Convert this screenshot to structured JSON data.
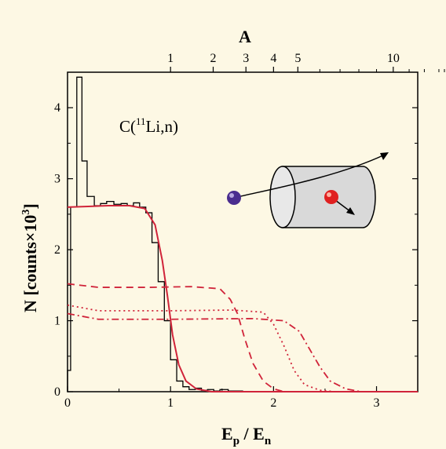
{
  "chart_data": {
    "type": "line",
    "annotation_label": "C(",
    "annotation_sup": "11",
    "annotation_label_tail": "Li,n)",
    "xlabel_main": "E",
    "xlabel_sub_p": "p",
    "xlabel_slash": " / E",
    "xlabel_sub_n": "n",
    "ylabel_main": "N [counts×10",
    "ylabel_sup": "3",
    "ylabel_tail": "]",
    "top_axis_label": "A",
    "xlim": [
      0,
      3.4
    ],
    "ylim": [
      0,
      4.5
    ],
    "x_ticks": [
      0,
      1,
      2,
      3
    ],
    "x_tick_labels": [
      "0",
      "1",
      "2",
      "3"
    ],
    "y_ticks": [
      0,
      1,
      2,
      3,
      4
    ],
    "y_tick_labels": [
      "0",
      "1",
      "2",
      "3",
      "4"
    ],
    "top_ticks": [
      {
        "A": 1,
        "label": "1"
      },
      {
        "A": 2,
        "label": "2"
      },
      {
        "A": 3,
        "label": "3"
      },
      {
        "A": 4,
        "label": "4"
      },
      {
        "A": 5,
        "label": "5"
      },
      {
        "A": 10,
        "label": "10"
      }
    ],
    "top_minor_ticks_A": [
      6,
      7,
      8,
      9,
      11,
      12,
      13,
      14,
      15,
      16,
      17,
      18,
      19,
      20,
      22,
      24,
      26,
      28,
      30,
      35,
      40,
      50,
      60,
      80,
      100
    ],
    "colors": {
      "histogram": "#000000",
      "fits": "#d0243a",
      "neutron_marker": "#4a2d8f",
      "proton_marker": "#e02020",
      "cylinder_fill": "#d9d9d9"
    },
    "series": [
      {
        "style": "step",
        "points": [
          [
            0.0,
            0.3
          ],
          [
            0.03,
            2.6
          ],
          [
            0.09,
            4.43
          ],
          [
            0.14,
            3.25
          ],
          [
            0.19,
            2.75
          ],
          [
            0.26,
            2.62
          ],
          [
            0.32,
            2.65
          ],
          [
            0.38,
            2.68
          ],
          [
            0.45,
            2.64
          ],
          [
            0.52,
            2.65
          ],
          [
            0.58,
            2.62
          ],
          [
            0.64,
            2.66
          ],
          [
            0.7,
            2.6
          ],
          [
            0.76,
            2.52
          ],
          [
            0.82,
            2.1
          ],
          [
            0.88,
            1.55
          ],
          [
            0.94,
            1.0
          ],
          [
            1.0,
            0.45
          ],
          [
            1.06,
            0.15
          ],
          [
            1.12,
            0.07
          ],
          [
            1.18,
            0.03
          ],
          [
            1.24,
            0.05
          ],
          [
            1.3,
            0.02
          ],
          [
            1.36,
            0.03
          ],
          [
            1.42,
            0.01
          ],
          [
            1.48,
            0.03
          ],
          [
            1.56,
            0.01
          ],
          [
            1.7,
            0.0
          ]
        ]
      },
      {
        "style": "solid",
        "points": [
          [
            0.0,
            2.6
          ],
          [
            0.2,
            2.61
          ],
          [
            0.4,
            2.62
          ],
          [
            0.6,
            2.62
          ],
          [
            0.75,
            2.58
          ],
          [
            0.85,
            2.35
          ],
          [
            0.92,
            1.85
          ],
          [
            0.97,
            1.35
          ],
          [
            1.02,
            0.8
          ],
          [
            1.08,
            0.38
          ],
          [
            1.15,
            0.15
          ],
          [
            1.25,
            0.04
          ],
          [
            1.4,
            0.0
          ],
          [
            3.4,
            0.0
          ]
        ]
      },
      {
        "style": "dashed",
        "points": [
          [
            0.0,
            1.52
          ],
          [
            0.3,
            1.47
          ],
          [
            0.8,
            1.47
          ],
          [
            1.2,
            1.48
          ],
          [
            1.48,
            1.45
          ],
          [
            1.58,
            1.3
          ],
          [
            1.65,
            1.1
          ],
          [
            1.72,
            0.75
          ],
          [
            1.8,
            0.4
          ],
          [
            1.9,
            0.15
          ],
          [
            2.0,
            0.04
          ],
          [
            2.1,
            0.0
          ],
          [
            3.4,
            0.0
          ]
        ]
      },
      {
        "style": "dotted",
        "points": [
          [
            0.0,
            1.22
          ],
          [
            0.3,
            1.14
          ],
          [
            1.0,
            1.14
          ],
          [
            1.6,
            1.15
          ],
          [
            1.9,
            1.12
          ],
          [
            2.0,
            0.95
          ],
          [
            2.1,
            0.65
          ],
          [
            2.2,
            0.3
          ],
          [
            2.3,
            0.1
          ],
          [
            2.45,
            0.02
          ],
          [
            2.6,
            0.0
          ],
          [
            3.4,
            0.0
          ]
        ]
      },
      {
        "style": "dashdot",
        "points": [
          [
            0.0,
            1.1
          ],
          [
            0.3,
            1.02
          ],
          [
            1.0,
            1.02
          ],
          [
            1.8,
            1.03
          ],
          [
            2.1,
            1.0
          ],
          [
            2.25,
            0.85
          ],
          [
            2.35,
            0.6
          ],
          [
            2.45,
            0.35
          ],
          [
            2.55,
            0.15
          ],
          [
            2.7,
            0.04
          ],
          [
            2.85,
            0.0
          ],
          [
            3.4,
            0.0
          ]
        ]
      }
    ]
  }
}
